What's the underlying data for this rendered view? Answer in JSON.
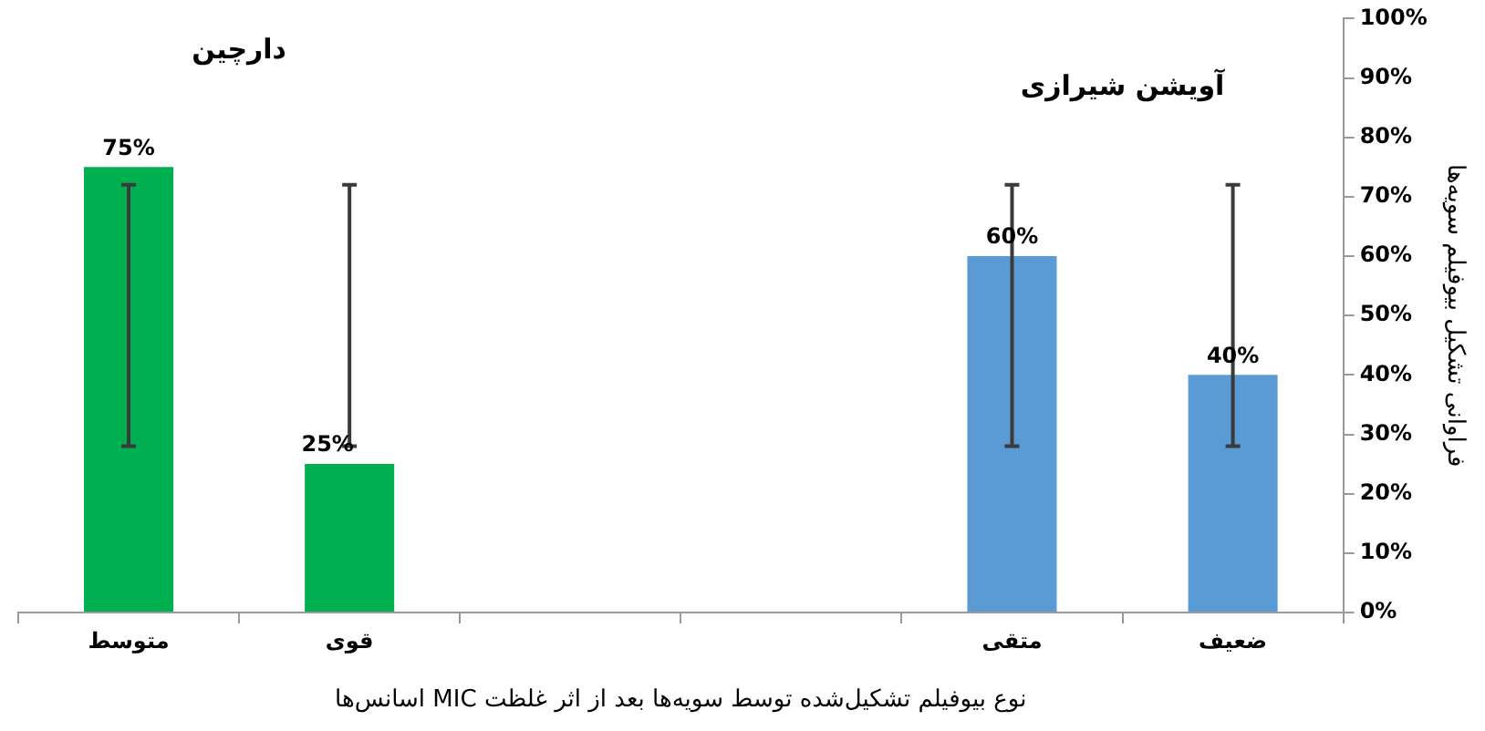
{
  "chart_data": {
    "type": "bar",
    "xlabel": "نوع بیوفیلم تشکیل‌شده توسط سویه‌ها بعد از اثر غلظت MIC اسانس‌ها",
    "ylabel": "فراوانی تشکیل بیوفیلم سویه‌ها",
    "annotations": [
      "دارچین",
      "آویشن شیرازی"
    ],
    "categories": [
      "متوسط",
      "قوی",
      null,
      null,
      "متقی",
      "ضعیف"
    ],
    "values": [
      75,
      25,
      null,
      null,
      60,
      40
    ],
    "colors": [
      "#00b050",
      "#00b050",
      "#5b9bd5",
      "#5b9bd5",
      "#5b9bd5",
      "#5b9bd5"
    ],
    "errors": [
      [
        28,
        72
      ],
      [
        28,
        72
      ],
      null,
      null,
      [
        28,
        72
      ],
      [
        28,
        72
      ]
    ],
    "value_labels": [
      "75%",
      "25%",
      null,
      null,
      "60%",
      "40%"
    ],
    "ylim": [
      0,
      100
    ],
    "yticks": [
      {
        "value": 0,
        "label": "0%"
      },
      {
        "value": 10,
        "label": "10%"
      },
      {
        "value": 20,
        "label": "20%"
      },
      {
        "value": 30,
        "label": "30%"
      },
      {
        "value": 40,
        "label": "40%"
      },
      {
        "value": 50,
        "label": "50%"
      },
      {
        "value": 60,
        "label": "60%"
      },
      {
        "value": 70,
        "label": "70%"
      },
      {
        "value": 80,
        "label": "80%"
      },
      {
        "value": 90,
        "label": "90%"
      },
      {
        "value": 100,
        "label": "100%"
      }
    ],
    "grid": false,
    "legend": false
  }
}
